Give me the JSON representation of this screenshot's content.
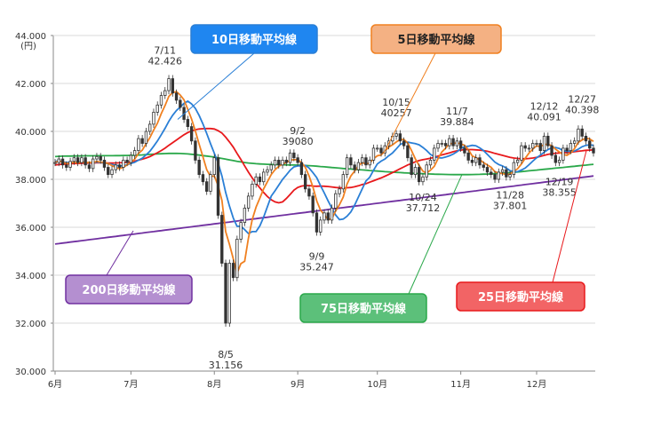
{
  "chart_data": {
    "type": "candlestick",
    "y_unit": "(円)",
    "yticks": [
      30000,
      32000,
      34000,
      36000,
      38000,
      40000,
      42000,
      44000
    ],
    "ytick_labels": [
      "30.000",
      "32.000",
      "34.000",
      "36.000",
      "38.000",
      "40.000",
      "42.000",
      "44.000"
    ],
    "ylim": [
      30000,
      44000
    ],
    "months": [
      "6月",
      "7月",
      "8月",
      "9月",
      "10月",
      "11月",
      "12月"
    ],
    "grid": "horizontal",
    "colors": {
      "ma5": "#f08020",
      "ma10": "#2a7fd6",
      "ma25": "#e8191c",
      "ma75": "#2aa84a",
      "ma200": "#7030a0",
      "candle": "#333333"
    },
    "legend": {
      "ma10": "10日移動平均線",
      "ma5": "5日移動平均線",
      "ma200": "200日移動平均線",
      "ma75": "75日移動平均線",
      "ma25": "25日移動平均線"
    },
    "annotations": [
      {
        "date": "7/11",
        "value": "42.426",
        "x": 29,
        "y": 42426
      },
      {
        "date": "8/5",
        "value": "31.156",
        "x": 45,
        "y": 31156
      },
      {
        "date": "9/2",
        "value": "39080",
        "x": 64,
        "y": 39080
      },
      {
        "date": "9/9",
        "value": "35.247",
        "x": 69,
        "y": 35247
      },
      {
        "date": "10/15",
        "value": "40257",
        "x": 90,
        "y": 40257
      },
      {
        "date": "10/24",
        "value": "37.712",
        "x": 97,
        "y": 37712
      },
      {
        "date": "11/7",
        "value": "39.884",
        "x": 106,
        "y": 39884
      },
      {
        "date": "11/28",
        "value": "37.801",
        "x": 120,
        "y": 37801
      },
      {
        "date": "12/12",
        "value": "40.091",
        "x": 129,
        "y": 40091
      },
      {
        "date": "12/19",
        "value": "38.355",
        "x": 133,
        "y": 38355
      },
      {
        "date": "12/27",
        "value": "40.398",
        "x": 139,
        "y": 40398
      }
    ],
    "close": [
      38700,
      38850,
      38600,
      38500,
      38750,
      38900,
      38700,
      38900,
      38600,
      38450,
      38850,
      38950,
      38800,
      38500,
      38200,
      38400,
      38600,
      38500,
      38800,
      38700,
      39000,
      39200,
      39700,
      39500,
      40000,
      40300,
      40800,
      41100,
      41500,
      41700,
      42200,
      41600,
      41300,
      41000,
      40500,
      40200,
      39600,
      38800,
      38200,
      37900,
      37500,
      38200,
      38900,
      36500,
      34500,
      32000,
      34500,
      33900,
      35500,
      36200,
      36800,
      37300,
      37800,
      38100,
      37900,
      38300,
      38400,
      38600,
      38800,
      38600,
      38800,
      38700,
      39100,
      38900,
      38700,
      38200,
      37600,
      37300,
      36600,
      35800,
      36300,
      36600,
      36300,
      36800,
      37400,
      37600,
      38200,
      38900,
      38600,
      38400,
      38700,
      38900,
      38600,
      38800,
      39300,
      39300,
      39100,
      39400,
      39600,
      39800,
      39900,
      39600,
      39400,
      38900,
      38200,
      38500,
      37900,
      38100,
      38600,
      38800,
      39300,
      39500,
      39500,
      39400,
      39700,
      39400,
      39600,
      39300,
      39100,
      38800,
      38700,
      38900,
      38600,
      38500,
      38300,
      38200,
      38000,
      38300,
      38400,
      38100,
      38200,
      38700,
      38800,
      39400,
      39300,
      39300,
      39500,
      39500,
      39200,
      39800,
      39400,
      39000,
      38700,
      38800,
      39300,
      39200,
      39500,
      39600,
      40100,
      39800,
      39600,
      39300,
      39100
    ],
    "ma5": [
      38700,
      38775,
      38717,
      38662,
      38680,
      38720,
      38680,
      38730,
      38690,
      38710,
      38700,
      38750,
      38720,
      38700,
      38660,
      38570,
      38500,
      38440,
      38500,
      38600,
      38720,
      38840,
      39080,
      39220,
      39480,
      39740,
      40060,
      40340,
      40740,
      41080,
      41460,
      41620,
      41660,
      41520,
      41320,
      40920,
      40520,
      40020,
      39460,
      38940,
      38400,
      38120,
      38140,
      37740,
      37120,
      35820,
      35280,
      34680,
      34080,
      34480,
      34580,
      35540,
      36320,
      36840,
      37220,
      37600,
      37900,
      38200,
      38400,
      38540,
      38640,
      38700,
      38800,
      38820,
      38820,
      38700,
      38500,
      38140,
      37680,
      37100,
      36720,
      36520,
      36320,
      36360,
      36680,
      36940,
      37260,
      37800,
      38140,
      38340,
      38560,
      38700,
      38640,
      38680,
      38860,
      38980,
      39020,
      39180,
      39340,
      39440,
      39560,
      39660,
      39660,
      39520,
      39200,
      38860,
      38580,
      38340,
      38260,
      38380,
      38540,
      38860,
      39140,
      39300,
      39480,
      39500,
      39520,
      39480,
      39420,
      39240,
      38980,
      38900,
      38820,
      38700,
      38600,
      38500,
      38320,
      38260,
      38240,
      38200,
      38220,
      38340,
      38440,
      38640,
      38880,
      39100,
      39260,
      39400,
      39360,
      39460,
      39460,
      39400,
      39260,
      39140,
      39040,
      39000,
      39100,
      39280,
      39540,
      39640,
      39720,
      39680,
      39580
    ],
    "ma10": [
      38750,
      38770,
      38730,
      38700,
      38710,
      38720,
      38710,
      38740,
      38700,
      38690,
      38700,
      38720,
      38700,
      38680,
      38660,
      38620,
      38590,
      38560,
      38570,
      38600,
      38660,
      38710,
      38800,
      38880,
      39020,
      39170,
      39380,
      39600,
      39860,
      40130,
      40420,
      40670,
      40870,
      41010,
      41170,
      41260,
      41150,
      40960,
      40660,
      40310,
      39910,
      39480,
      39090,
      38680,
      38140,
      37450,
      36880,
      36380,
      36040,
      36040,
      35900,
      35740,
      35820,
      35820,
      36060,
      36420,
      36860,
      37300,
      37520,
      37760,
      38000,
      38180,
      38380,
      38520,
      38560,
      38560,
      38580,
      38470,
      38280,
      38070,
      37740,
      37430,
      37100,
      36800,
      36510,
      36320,
      36340,
      36460,
      36640,
      36920,
      37260,
      37600,
      37930,
      38090,
      38380,
      38640,
      38760,
      38850,
      38980,
      39100,
      39270,
      39450,
      39530,
      39550,
      39520,
      39490,
      39440,
      39330,
      39200,
      39040,
      38950,
      38900,
      38890,
      38930,
      38980,
      39050,
      39150,
      39280,
      39360,
      39380,
      39420,
      39400,
      39310,
      39200,
      39040,
      38880,
      38720,
      38620,
      38560,
      38470,
      38360,
      38320,
      38320,
      38390,
      38470,
      38610,
      38760,
      38900,
      39010,
      39130,
      39240,
      39320,
      39330,
      39290,
      39190,
      39170,
      39170,
      39180,
      39260,
      39360,
      39420,
      39440,
      39420
    ],
    "ma25": [
      38600,
      38620,
      38630,
      38640,
      38650,
      38660,
      38660,
      38670,
      38670,
      38670,
      38680,
      38690,
      38690,
      38690,
      38680,
      38680,
      38680,
      38690,
      38700,
      38710,
      38730,
      38760,
      38800,
      38840,
      38890,
      38950,
      39030,
      39110,
      39200,
      39300,
      39420,
      39530,
      39640,
      39750,
      39860,
      39950,
      40020,
      40070,
      40100,
      40110,
      40120,
      40120,
      40100,
      40030,
      39930,
      39760,
      39560,
      39340,
      39080,
      38830,
      38560,
      38300,
      38060,
      37840,
      37640,
      37450,
      37280,
      37150,
      37060,
      37020,
      37060,
      37200,
      37370,
      37550,
      37660,
      37720,
      37740,
      37740,
      37720,
      37710,
      37720,
      37710,
      37700,
      37680,
      37660,
      37650,
      37640,
      37650,
      37660,
      37690,
      37730,
      37780,
      37820,
      37880,
      37940,
      38000,
      38060,
      38130,
      38200,
      38280,
      38360,
      38440,
      38520,
      38600,
      38660,
      38730,
      38780,
      38820,
      38850,
      38880,
      38920,
      38970,
      39020,
      39060,
      39100,
      39150,
      39190,
      39220,
      39240,
      39240,
      39240,
      39230,
      39220,
      39200,
      39170,
      39130,
      39080,
      39040,
      39000,
      38960,
      38920,
      38890,
      38870,
      38860,
      38860,
      38870,
      38890,
      38920,
      38960,
      39000,
      39040,
      39070,
      39090,
      39100,
      39110,
      39120,
      39130,
      39150,
      39170,
      39190,
      39210,
      39220,
      39230
    ],
    "ma75": [
      38950,
      38960,
      38965,
      38970,
      38972,
      38975,
      38975,
      38978,
      38980,
      38980,
      38982,
      38985,
      38985,
      38985,
      38985,
      38986,
      38988,
      38990,
      38992,
      38995,
      39000,
      39005,
      39012,
      39020,
      39030,
      39040,
      39050,
      39060,
      39068,
      39075,
      39080,
      39082,
      39080,
      39076,
      39070,
      39060,
      39045,
      39030,
      39010,
      38990,
      38970,
      38950,
      38930,
      38900,
      38870,
      38840,
      38810,
      38780,
      38750,
      38725,
      38700,
      38680,
      38665,
      38650,
      38640,
      38632,
      38625,
      38620,
      38616,
      38612,
      38608,
      38604,
      38600,
      38596,
      38592,
      38585,
      38578,
      38570,
      38560,
      38548,
      38535,
      38522,
      38508,
      38494,
      38480,
      38466,
      38452,
      38440,
      38428,
      38416,
      38404,
      38392,
      38380,
      38368,
      38356,
      38344,
      38332,
      38320,
      38310,
      38300,
      38290,
      38280,
      38270,
      38262,
      38254,
      38246,
      38240,
      38234,
      38228,
      38222,
      38216,
      38210,
      38206,
      38202,
      38200,
      38198,
      38196,
      38196,
      38196,
      38198,
      38200,
      38204,
      38208,
      38214,
      38220,
      38228,
      38236,
      38246,
      38256,
      38268,
      38280,
      38294,
      38308,
      38322,
      38338,
      38354,
      38370,
      38386,
      38402,
      38418,
      38434,
      38450,
      38466,
      38482,
      38498,
      38514,
      38530,
      38546,
      38562,
      38578,
      38594,
      38610,
      38626
    ],
    "ma200": [
      35300,
      35320,
      35340,
      35360,
      35380,
      35400,
      35420,
      35440,
      35460,
      35480,
      35500,
      35520,
      35540,
      35560,
      35580,
      35600,
      35620,
      35640,
      35660,
      35680,
      35700,
      35720,
      35740,
      35760,
      35780,
      35800,
      35820,
      35840,
      35860,
      35880,
      35900,
      35920,
      35940,
      35960,
      35980,
      36000,
      36020,
      36040,
      36060,
      36080,
      36100,
      36120,
      36140,
      36160,
      36180,
      36200,
      36220,
      36240,
      36260,
      36280,
      36300,
      36320,
      36340,
      36360,
      36380,
      36400,
      36420,
      36440,
      36460,
      36480,
      36500,
      36520,
      36540,
      36560,
      36580,
      36600,
      36620,
      36640,
      36660,
      36680,
      36700,
      36720,
      36740,
      36760,
      36780,
      36800,
      36820,
      36840,
      36860,
      36880,
      36900,
      36920,
      36940,
      36960,
      36980,
      37000,
      37020,
      37040,
      37060,
      37080,
      37100,
      37120,
      37140,
      37160,
      37180,
      37200,
      37220,
      37240,
      37260,
      37280,
      37300,
      37320,
      37340,
      37360,
      37380,
      37400,
      37420,
      37440,
      37460,
      37480,
      37500,
      37520,
      37540,
      37560,
      37580,
      37600,
      37620,
      37640,
      37660,
      37680,
      37700,
      37720,
      37740,
      37760,
      37780,
      37800,
      37820,
      37840,
      37860,
      37880,
      37900,
      37920,
      37940,
      37960,
      37980,
      38000,
      38020,
      38040,
      38060,
      38080,
      38100,
      38120,
      38140
    ]
  }
}
